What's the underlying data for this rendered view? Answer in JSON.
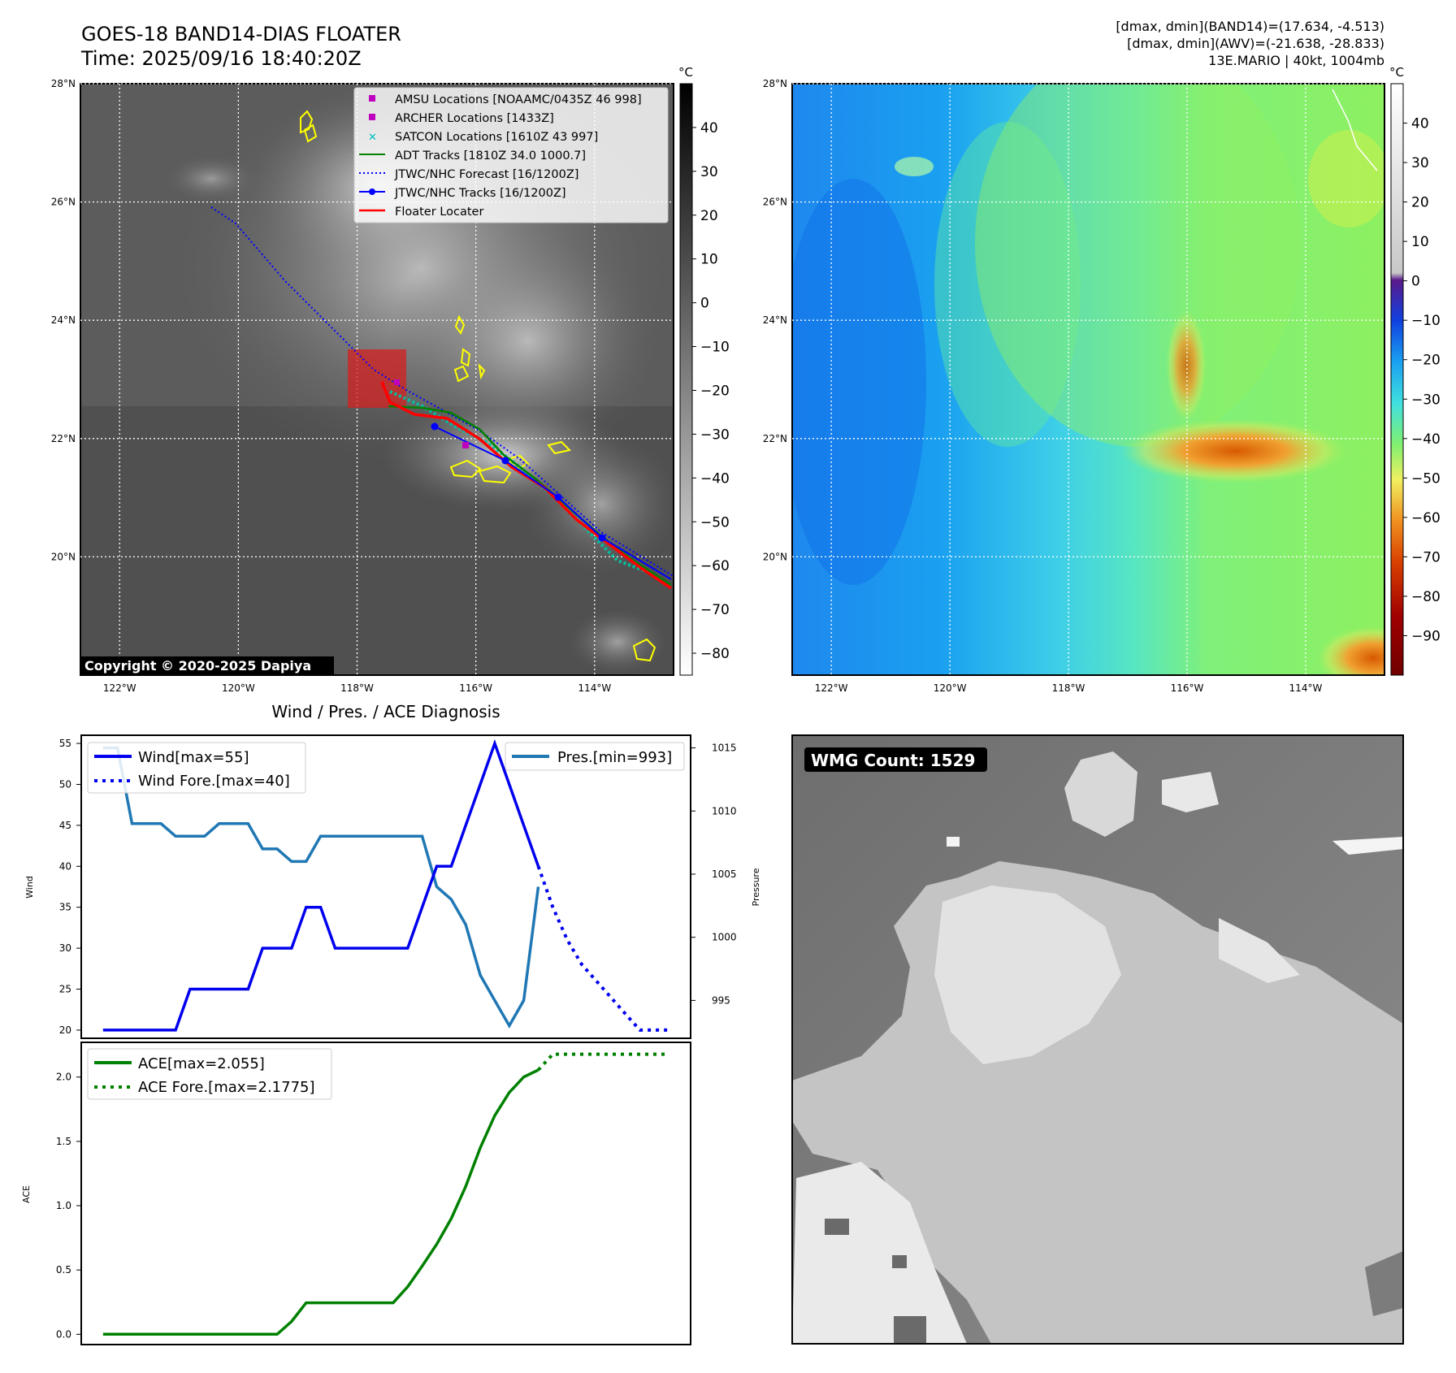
{
  "header": {
    "title": "GOES-18 BAND14-DIAS FLOATER",
    "time": "Time: 2025/09/16 18:40:20Z",
    "info_line1": "[dmax, dmin](BAND14)=(17.634, -4.513)",
    "info_line2": "[dmax, dmin](AWV)=(-21.638, -28.833)",
    "info_line3": "13E.MARIO | 40kt, 1004mb"
  },
  "copyright": "Copyright © 2020-2025 Dapiya",
  "map": {
    "lat_labels": [
      "28°N",
      "26°N",
      "24°N",
      "22°N",
      "20°N"
    ],
    "lat_values": [
      28,
      26,
      24,
      22,
      20
    ],
    "lon_labels": [
      "122°W",
      "120°W",
      "118°W",
      "116°W",
      "114°W"
    ],
    "lon_values": [
      -122,
      -120,
      -118,
      -116,
      -114
    ],
    "lon_range": [
      -122.66,
      -112.67
    ],
    "lat_range": [
      18.0,
      28.0
    ]
  },
  "colorbar_ir": {
    "unit": "°C",
    "ticks": [
      "40",
      "30",
      "20",
      "10",
      "0",
      "−10",
      "−20",
      "−30",
      "−40",
      "−50",
      "−60",
      "−70",
      "−80"
    ],
    "tick_values": [
      40,
      30,
      20,
      10,
      0,
      -10,
      -20,
      -30,
      -40,
      -50,
      -60,
      -70,
      -80
    ],
    "range": [
      -85,
      50
    ]
  },
  "colorbar_wv": {
    "unit": "°C",
    "ticks": [
      "40",
      "30",
      "20",
      "10",
      "0",
      "−10",
      "−20",
      "−30",
      "−40",
      "−50",
      "−60",
      "−70",
      "−80",
      "−90"
    ],
    "tick_values": [
      40,
      30,
      20,
      10,
      0,
      -10,
      -20,
      -30,
      -40,
      -50,
      -60,
      -70,
      -80,
      -90
    ],
    "range": [
      -100,
      50
    ]
  },
  "legend_map": {
    "amsu": "AMSU Locations [NOAAMC/0435Z 46 998]",
    "archer": "ARCHER Locations [1433Z]",
    "satcon": "SATCON Locations [1610Z 43 997]",
    "adt": "ADT Tracks [1810Z 34.0 1000.7]",
    "forecast": "JTWC/NHC Forecast [16/1200Z]",
    "tracks": "JTWC/NHC Tracks [16/1200Z]",
    "floater": "Floater Locater"
  },
  "colors": {
    "wind": "#0000ee",
    "pressure": "#1f77b4",
    "ace": "#008000",
    "amsu": "#bf00bf",
    "satcon": "#00bfbf",
    "adt": "#008000",
    "floater": "#ff0000",
    "coast": "#ffff00"
  },
  "diag_title": "Wind / Pres. / ACE Diagnosis",
  "wmg": {
    "label": "WMG Count: 1529"
  },
  "chart_data": [
    {
      "type": "line",
      "title": "Wind / Pres. / ACE Diagnosis",
      "ylabel": "Wind",
      "ylabel_right": "Pressure",
      "ylim": [
        19,
        56
      ],
      "ylim_right": [
        992,
        1016
      ],
      "yticks": [
        20,
        25,
        30,
        35,
        40,
        45,
        50,
        55
      ],
      "yticks_right": [
        995,
        1000,
        1005,
        1010,
        1015
      ],
      "x": [
        0,
        1,
        2,
        3,
        4,
        5,
        6,
        7,
        8,
        9,
        10,
        11,
        12,
        13,
        14,
        15,
        16,
        17,
        18,
        19,
        20,
        21,
        22,
        23,
        24,
        25,
        26,
        27,
        28,
        29,
        30,
        31,
        32,
        33,
        34,
        35,
        36,
        37,
        38,
        39
      ],
      "series": [
        {
          "name": "Wind[max=55]",
          "x": [
            0,
            1,
            2,
            3,
            4,
            5,
            6,
            7,
            8,
            9,
            10,
            11,
            12,
            13,
            14,
            15,
            16,
            17,
            18,
            19,
            20,
            21,
            22,
            23,
            24,
            25,
            26,
            27,
            28,
            29,
            30
          ],
          "values": [
            20,
            20,
            20,
            20,
            20,
            20,
            25,
            25,
            25,
            25,
            25,
            30,
            30,
            30,
            35,
            35,
            30,
            30,
            30,
            30,
            30,
            30,
            35,
            40,
            40,
            45,
            50,
            55,
            50,
            45,
            40
          ]
        },
        {
          "name": "Wind Fore.[max=40]",
          "x": [
            30,
            31,
            32,
            33,
            34,
            35,
            36,
            37,
            38,
            39
          ],
          "values": [
            40,
            35,
            31,
            28,
            26,
            24,
            22,
            20,
            20,
            20
          ]
        },
        {
          "name": "Pres.[min=993]",
          "x": [
            0,
            1,
            2,
            3,
            4,
            5,
            6,
            7,
            8,
            9,
            10,
            11,
            12,
            13,
            14,
            15,
            16,
            17,
            18,
            19,
            20,
            21,
            22,
            23,
            24,
            25,
            26,
            27,
            28,
            29,
            30
          ],
          "values": [
            1015,
            1015,
            1009,
            1009,
            1009,
            1008,
            1008,
            1008,
            1009,
            1009,
            1009,
            1007,
            1007,
            1006,
            1006,
            1008,
            1008,
            1008,
            1008,
            1008,
            1008,
            1008,
            1008,
            1004,
            1003,
            1001,
            997,
            995,
            993,
            995,
            1004
          ]
        }
      ]
    },
    {
      "type": "line",
      "ylabel": "ACE",
      "ylim": [
        -0.08,
        2.27
      ],
      "yticks": [
        0.0,
        0.5,
        1.0,
        1.5,
        2.0
      ],
      "ytick_labels": [
        "0.0",
        "0.5",
        "1.0",
        "1.5",
        "2.0"
      ],
      "series": [
        {
          "name": "ACE[max=2.055]",
          "x": [
            0,
            1,
            2,
            3,
            4,
            5,
            6,
            7,
            8,
            9,
            10,
            11,
            12,
            13,
            14,
            15,
            16,
            17,
            18,
            19,
            20,
            21,
            22,
            23,
            24,
            25,
            26,
            27,
            28,
            29,
            30
          ],
          "values": [
            0,
            0,
            0,
            0,
            0,
            0,
            0,
            0,
            0,
            0,
            0,
            0,
            0,
            0.1,
            0.245,
            0.245,
            0.245,
            0.245,
            0.245,
            0.245,
            0.245,
            0.37,
            0.53,
            0.7,
            0.9,
            1.15,
            1.45,
            1.7,
            1.88,
            2.0,
            2.055
          ]
        },
        {
          "name": "ACE Fore.[max=2.1775]",
          "x": [
            30,
            31,
            32,
            33,
            34,
            35,
            36,
            37,
            38,
            39
          ],
          "values": [
            2.055,
            2.1775,
            2.1775,
            2.1775,
            2.1775,
            2.1775,
            2.1775,
            2.1775,
            2.1775,
            2.1775
          ]
        }
      ]
    }
  ]
}
